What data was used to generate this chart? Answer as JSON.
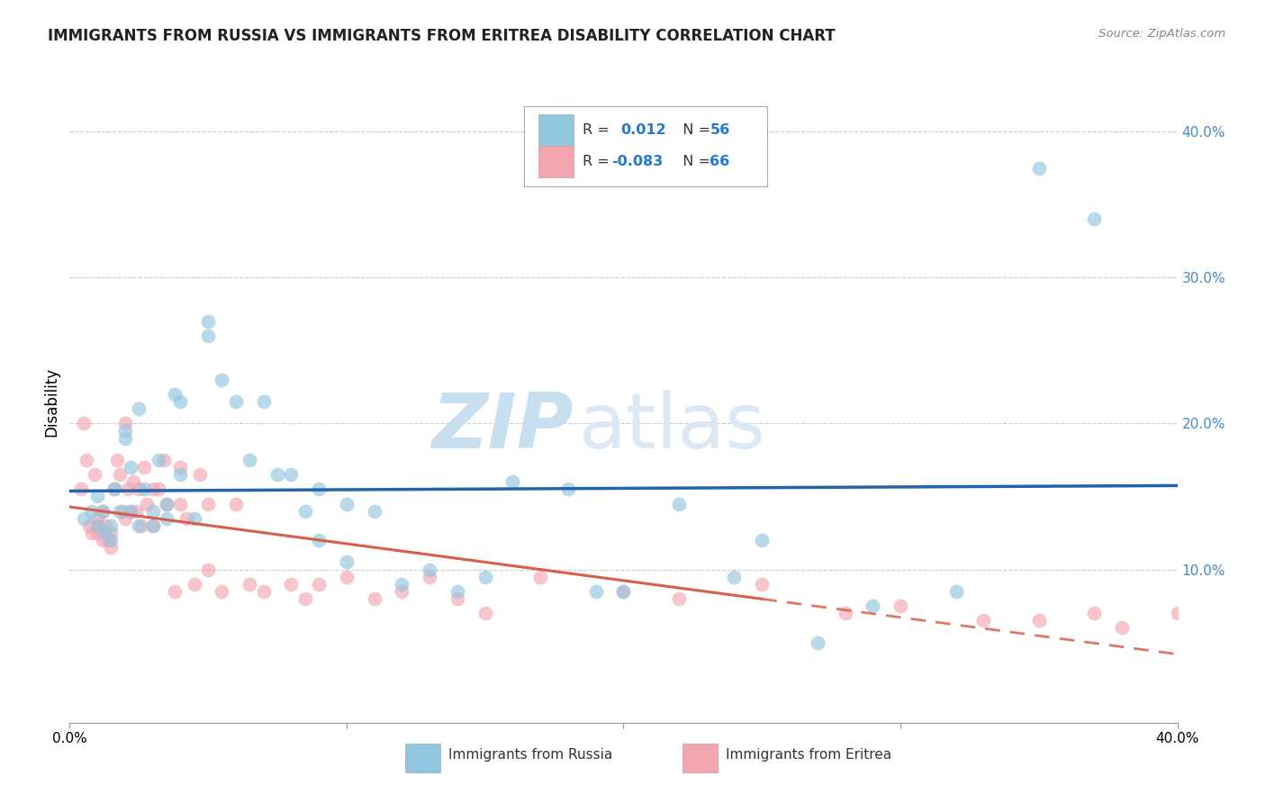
{
  "title": "IMMIGRANTS FROM RUSSIA VS IMMIGRANTS FROM ERITREA DISABILITY CORRELATION CHART",
  "source": "Source: ZipAtlas.com",
  "ylabel": "Disability",
  "xlim": [
    0.0,
    0.4
  ],
  "ylim": [
    -0.005,
    0.435
  ],
  "yticks": [
    0.1,
    0.2,
    0.3,
    0.4
  ],
  "ytick_labels": [
    "10.0%",
    "20.0%",
    "30.0%",
    "40.0%"
  ],
  "color_russia": "#92c5de",
  "color_eritrea": "#f4a6b0",
  "color_russia_line": "#2166ac",
  "color_eritrea_line": "#d6604d",
  "watermark_zip": "ZIP",
  "watermark_atlas": "atlas",
  "russia_x": [
    0.005,
    0.008,
    0.01,
    0.01,
    0.012,
    0.013,
    0.015,
    0.015,
    0.016,
    0.018,
    0.02,
    0.02,
    0.022,
    0.022,
    0.025,
    0.025,
    0.027,
    0.03,
    0.03,
    0.032,
    0.035,
    0.035,
    0.038,
    0.04,
    0.04,
    0.045,
    0.05,
    0.05,
    0.055,
    0.06,
    0.065,
    0.07,
    0.075,
    0.08,
    0.085,
    0.09,
    0.09,
    0.1,
    0.1,
    0.11,
    0.12,
    0.13,
    0.14,
    0.15,
    0.16,
    0.18,
    0.19,
    0.2,
    0.22,
    0.24,
    0.25,
    0.27,
    0.29,
    0.32,
    0.35,
    0.37
  ],
  "russia_y": [
    0.135,
    0.14,
    0.15,
    0.13,
    0.14,
    0.125,
    0.13,
    0.12,
    0.155,
    0.14,
    0.195,
    0.19,
    0.17,
    0.14,
    0.13,
    0.21,
    0.155,
    0.14,
    0.13,
    0.175,
    0.135,
    0.145,
    0.22,
    0.215,
    0.165,
    0.135,
    0.27,
    0.26,
    0.23,
    0.215,
    0.175,
    0.215,
    0.165,
    0.165,
    0.14,
    0.155,
    0.12,
    0.145,
    0.105,
    0.14,
    0.09,
    0.1,
    0.085,
    0.095,
    0.16,
    0.155,
    0.085,
    0.085,
    0.145,
    0.095,
    0.12,
    0.05,
    0.075,
    0.085,
    0.375,
    0.34
  ],
  "eritrea_x": [
    0.004,
    0.005,
    0.006,
    0.007,
    0.008,
    0.009,
    0.01,
    0.01,
    0.01,
    0.012,
    0.012,
    0.013,
    0.014,
    0.015,
    0.015,
    0.016,
    0.017,
    0.018,
    0.019,
    0.02,
    0.02,
    0.021,
    0.022,
    0.023,
    0.024,
    0.025,
    0.026,
    0.027,
    0.028,
    0.03,
    0.03,
    0.032,
    0.034,
    0.035,
    0.038,
    0.04,
    0.04,
    0.042,
    0.045,
    0.047,
    0.05,
    0.05,
    0.055,
    0.06,
    0.065,
    0.07,
    0.08,
    0.085,
    0.09,
    0.1,
    0.11,
    0.12,
    0.13,
    0.14,
    0.15,
    0.17,
    0.2,
    0.22,
    0.25,
    0.28,
    0.3,
    0.33,
    0.35,
    0.37,
    0.38,
    0.4
  ],
  "eritrea_y": [
    0.155,
    0.2,
    0.175,
    0.13,
    0.125,
    0.165,
    0.135,
    0.13,
    0.125,
    0.14,
    0.12,
    0.13,
    0.12,
    0.125,
    0.115,
    0.155,
    0.175,
    0.165,
    0.14,
    0.2,
    0.135,
    0.155,
    0.14,
    0.16,
    0.14,
    0.155,
    0.13,
    0.17,
    0.145,
    0.155,
    0.13,
    0.155,
    0.175,
    0.145,
    0.085,
    0.17,
    0.145,
    0.135,
    0.09,
    0.165,
    0.145,
    0.1,
    0.085,
    0.145,
    0.09,
    0.085,
    0.09,
    0.08,
    0.09,
    0.095,
    0.08,
    0.085,
    0.095,
    0.08,
    0.07,
    0.095,
    0.085,
    0.08,
    0.09,
    0.07,
    0.075,
    0.065,
    0.065,
    0.07,
    0.06,
    0.07
  ]
}
